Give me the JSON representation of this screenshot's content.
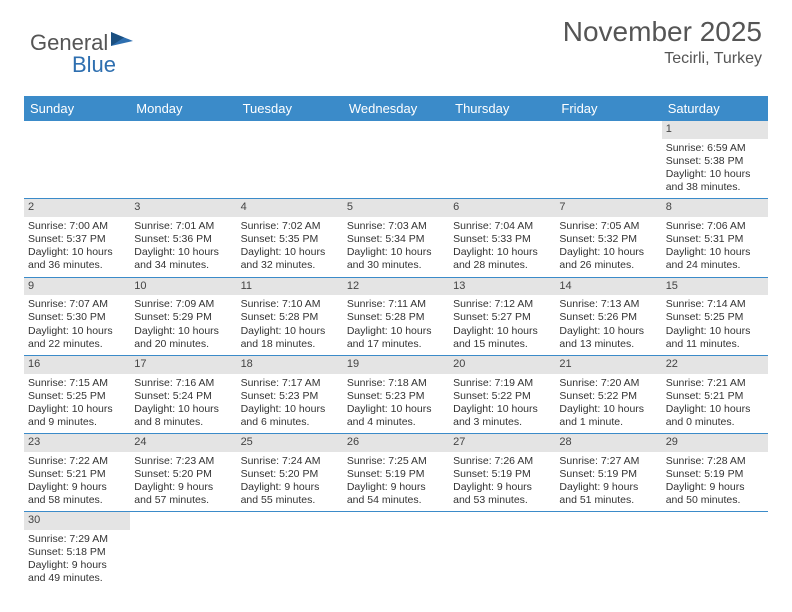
{
  "logo": {
    "text1": "General",
    "text2": "Blue"
  },
  "header": {
    "title": "November 2025",
    "location": "Tecirli, Turkey"
  },
  "colors": {
    "headerBar": "#3b8bc9",
    "dayNumBg": "#e4e4e4",
    "weekBorder": "#3b8bc9",
    "logoBlue": "#2e6fb0"
  },
  "dayNames": [
    "Sunday",
    "Monday",
    "Tuesday",
    "Wednesday",
    "Thursday",
    "Friday",
    "Saturday"
  ],
  "weeks": [
    [
      null,
      null,
      null,
      null,
      null,
      null,
      {
        "n": "1",
        "sr": "Sunrise: 6:59 AM",
        "ss": "Sunset: 5:38 PM",
        "d1": "Daylight: 10 hours",
        "d2": "and 38 minutes."
      }
    ],
    [
      {
        "n": "2",
        "sr": "Sunrise: 7:00 AM",
        "ss": "Sunset: 5:37 PM",
        "d1": "Daylight: 10 hours",
        "d2": "and 36 minutes."
      },
      {
        "n": "3",
        "sr": "Sunrise: 7:01 AM",
        "ss": "Sunset: 5:36 PM",
        "d1": "Daylight: 10 hours",
        "d2": "and 34 minutes."
      },
      {
        "n": "4",
        "sr": "Sunrise: 7:02 AM",
        "ss": "Sunset: 5:35 PM",
        "d1": "Daylight: 10 hours",
        "d2": "and 32 minutes."
      },
      {
        "n": "5",
        "sr": "Sunrise: 7:03 AM",
        "ss": "Sunset: 5:34 PM",
        "d1": "Daylight: 10 hours",
        "d2": "and 30 minutes."
      },
      {
        "n": "6",
        "sr": "Sunrise: 7:04 AM",
        "ss": "Sunset: 5:33 PM",
        "d1": "Daylight: 10 hours",
        "d2": "and 28 minutes."
      },
      {
        "n": "7",
        "sr": "Sunrise: 7:05 AM",
        "ss": "Sunset: 5:32 PM",
        "d1": "Daylight: 10 hours",
        "d2": "and 26 minutes."
      },
      {
        "n": "8",
        "sr": "Sunrise: 7:06 AM",
        "ss": "Sunset: 5:31 PM",
        "d1": "Daylight: 10 hours",
        "d2": "and 24 minutes."
      }
    ],
    [
      {
        "n": "9",
        "sr": "Sunrise: 7:07 AM",
        "ss": "Sunset: 5:30 PM",
        "d1": "Daylight: 10 hours",
        "d2": "and 22 minutes."
      },
      {
        "n": "10",
        "sr": "Sunrise: 7:09 AM",
        "ss": "Sunset: 5:29 PM",
        "d1": "Daylight: 10 hours",
        "d2": "and 20 minutes."
      },
      {
        "n": "11",
        "sr": "Sunrise: 7:10 AM",
        "ss": "Sunset: 5:28 PM",
        "d1": "Daylight: 10 hours",
        "d2": "and 18 minutes."
      },
      {
        "n": "12",
        "sr": "Sunrise: 7:11 AM",
        "ss": "Sunset: 5:28 PM",
        "d1": "Daylight: 10 hours",
        "d2": "and 17 minutes."
      },
      {
        "n": "13",
        "sr": "Sunrise: 7:12 AM",
        "ss": "Sunset: 5:27 PM",
        "d1": "Daylight: 10 hours",
        "d2": "and 15 minutes."
      },
      {
        "n": "14",
        "sr": "Sunrise: 7:13 AM",
        "ss": "Sunset: 5:26 PM",
        "d1": "Daylight: 10 hours",
        "d2": "and 13 minutes."
      },
      {
        "n": "15",
        "sr": "Sunrise: 7:14 AM",
        "ss": "Sunset: 5:25 PM",
        "d1": "Daylight: 10 hours",
        "d2": "and 11 minutes."
      }
    ],
    [
      {
        "n": "16",
        "sr": "Sunrise: 7:15 AM",
        "ss": "Sunset: 5:25 PM",
        "d1": "Daylight: 10 hours",
        "d2": "and 9 minutes."
      },
      {
        "n": "17",
        "sr": "Sunrise: 7:16 AM",
        "ss": "Sunset: 5:24 PM",
        "d1": "Daylight: 10 hours",
        "d2": "and 8 minutes."
      },
      {
        "n": "18",
        "sr": "Sunrise: 7:17 AM",
        "ss": "Sunset: 5:23 PM",
        "d1": "Daylight: 10 hours",
        "d2": "and 6 minutes."
      },
      {
        "n": "19",
        "sr": "Sunrise: 7:18 AM",
        "ss": "Sunset: 5:23 PM",
        "d1": "Daylight: 10 hours",
        "d2": "and 4 minutes."
      },
      {
        "n": "20",
        "sr": "Sunrise: 7:19 AM",
        "ss": "Sunset: 5:22 PM",
        "d1": "Daylight: 10 hours",
        "d2": "and 3 minutes."
      },
      {
        "n": "21",
        "sr": "Sunrise: 7:20 AM",
        "ss": "Sunset: 5:22 PM",
        "d1": "Daylight: 10 hours",
        "d2": "and 1 minute."
      },
      {
        "n": "22",
        "sr": "Sunrise: 7:21 AM",
        "ss": "Sunset: 5:21 PM",
        "d1": "Daylight: 10 hours",
        "d2": "and 0 minutes."
      }
    ],
    [
      {
        "n": "23",
        "sr": "Sunrise: 7:22 AM",
        "ss": "Sunset: 5:21 PM",
        "d1": "Daylight: 9 hours",
        "d2": "and 58 minutes."
      },
      {
        "n": "24",
        "sr": "Sunrise: 7:23 AM",
        "ss": "Sunset: 5:20 PM",
        "d1": "Daylight: 9 hours",
        "d2": "and 57 minutes."
      },
      {
        "n": "25",
        "sr": "Sunrise: 7:24 AM",
        "ss": "Sunset: 5:20 PM",
        "d1": "Daylight: 9 hours",
        "d2": "and 55 minutes."
      },
      {
        "n": "26",
        "sr": "Sunrise: 7:25 AM",
        "ss": "Sunset: 5:19 PM",
        "d1": "Daylight: 9 hours",
        "d2": "and 54 minutes."
      },
      {
        "n": "27",
        "sr": "Sunrise: 7:26 AM",
        "ss": "Sunset: 5:19 PM",
        "d1": "Daylight: 9 hours",
        "d2": "and 53 minutes."
      },
      {
        "n": "28",
        "sr": "Sunrise: 7:27 AM",
        "ss": "Sunset: 5:19 PM",
        "d1": "Daylight: 9 hours",
        "d2": "and 51 minutes."
      },
      {
        "n": "29",
        "sr": "Sunrise: 7:28 AM",
        "ss": "Sunset: 5:19 PM",
        "d1": "Daylight: 9 hours",
        "d2": "and 50 minutes."
      }
    ],
    [
      {
        "n": "30",
        "sr": "Sunrise: 7:29 AM",
        "ss": "Sunset: 5:18 PM",
        "d1": "Daylight: 9 hours",
        "d2": "and 49 minutes."
      },
      null,
      null,
      null,
      null,
      null,
      null
    ]
  ]
}
